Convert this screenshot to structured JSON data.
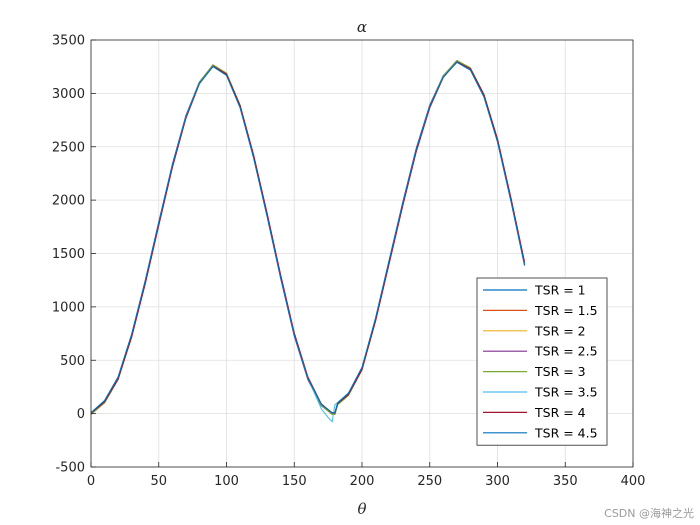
{
  "chart_data": {
    "type": "line",
    "title": "α",
    "xlabel": "θ",
    "ylabel": "",
    "xlim": [
      0,
      400
    ],
    "ylim": [
      -500,
      3500
    ],
    "xticks": [
      "0",
      "50",
      "100",
      "150",
      "200",
      "250",
      "300",
      "350",
      "400"
    ],
    "yticks": [
      "-500",
      "0",
      "500",
      "1000",
      "1500",
      "2000",
      "2500",
      "3000",
      "3500"
    ],
    "grid": true,
    "legend_position": "bottom-right",
    "series": [
      {
        "name": "TSR = 1",
        "color": "#0072BD",
        "dx": 0,
        "dy": 0
      },
      {
        "name": "TSR = 1.5",
        "color": "#D95319",
        "dx": 0.6,
        "dy": -8
      },
      {
        "name": "TSR = 2",
        "color": "#EDB120",
        "dx": -0.5,
        "dy": 6
      },
      {
        "name": "TSR = 2.5",
        "color": "#7E2F8E",
        "dx": 0.8,
        "dy": -14
      },
      {
        "name": "TSR = 3",
        "color": "#77AC30",
        "dx": -0.9,
        "dy": 10
      },
      {
        "name": "TSR = 3.5",
        "color": "#4DBEEE",
        "dx": 0.4,
        "dy": -4
      },
      {
        "name": "TSR = 4",
        "color": "#A2142F",
        "dx": 1.0,
        "dy": -18
      },
      {
        "name": "TSR = 4.5",
        "color": "#0072BD",
        "dx": -0.3,
        "dy": 14
      }
    ],
    "base_curve": {
      "x": [
        0,
        10,
        20,
        30,
        40,
        50,
        60,
        70,
        80,
        90,
        100,
        110,
        120,
        130,
        140,
        150,
        160,
        170,
        178,
        180,
        182,
        190,
        200,
        210,
        220,
        230,
        240,
        250,
        260,
        270,
        280,
        290,
        300,
        310,
        320
      ],
      "y": [
        0,
        110,
        330,
        730,
        1230,
        1780,
        2320,
        2780,
        3100,
        3260,
        3180,
        2880,
        2410,
        1860,
        1280,
        740,
        330,
        80,
        0,
        0,
        90,
        180,
        420,
        880,
        1420,
        1960,
        2470,
        2880,
        3160,
        3300,
        3230,
        2980,
        2560,
        2000,
        1400
      ]
    },
    "dip_series": {
      "x": [
        170,
        175,
        178,
        180,
        182,
        190
      ],
      "y": [
        40,
        -40,
        -80,
        80,
        100,
        190
      ]
    }
  },
  "watermark": "CSDN @海神之光"
}
